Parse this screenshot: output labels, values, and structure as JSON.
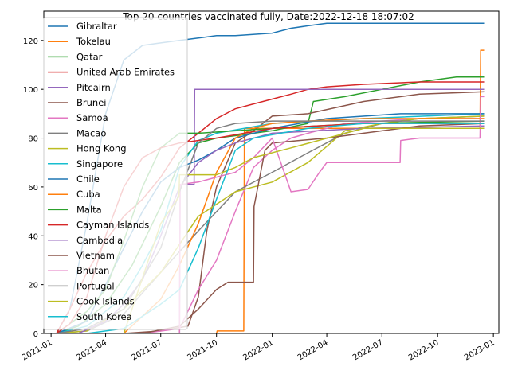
{
  "chart_data": {
    "type": "line",
    "title": "Top 20 countries vaccinated fully, Date:2022-12-18 18:07:02",
    "xlabel": "",
    "ylabel": "",
    "xlim": [
      "2020-12-20",
      "2023-01-10"
    ],
    "ylim": [
      0,
      132
    ],
    "x_ticks": [
      "2021-01",
      "2021-04",
      "2021-07",
      "2021-10",
      "2022-01",
      "2022-04",
      "2022-07",
      "2022-10",
      "2023-01"
    ],
    "y_ticks": [
      0,
      20,
      40,
      60,
      80,
      100,
      120
    ],
    "legend_position": "upper-left",
    "series": [
      {
        "name": "Gibraltar",
        "color": "#1f77b4",
        "x": [
          "2021-01-10",
          "2021-02-01",
          "2021-03-01",
          "2021-04-01",
          "2021-05-01",
          "2021-06-01",
          "2021-07-01",
          "2021-08-01",
          "2021-09-01",
          "2021-10-01",
          "2021-11-01",
          "2022-01-01",
          "2022-02-01",
          "2022-03-01",
          "2022-04-01",
          "2022-05-01",
          "2022-07-01",
          "2022-10-01",
          "2022-12-18"
        ],
        "y": [
          0,
          10,
          45,
          90,
          112,
          118,
          119,
          120,
          121,
          122,
          122,
          123,
          125,
          126,
          127,
          127,
          127,
          127,
          127
        ]
      },
      {
        "name": "Tokelau",
        "color": "#ff7f0e",
        "x": [
          "2021-01-10",
          "2021-07-01",
          "2021-07-05",
          "2021-10-01",
          "2021-10-02",
          "2021-11-15",
          "2021-11-16",
          "2022-12-10",
          "2022-12-11",
          "2022-12-18"
        ],
        "y": [
          0,
          0,
          0,
          0,
          1,
          1,
          84,
          84,
          116,
          116
        ]
      },
      {
        "name": "Qatar",
        "color": "#2ca02c",
        "x": [
          "2021-01-10",
          "2021-02-15",
          "2021-04-01",
          "2021-05-15",
          "2021-07-01",
          "2021-08-01",
          "2021-09-01",
          "2021-10-01",
          "2021-11-01",
          "2022-01-01",
          "2022-03-01",
          "2022-03-10",
          "2022-05-01",
          "2022-07-01",
          "2022-09-01",
          "2022-11-01",
          "2022-12-18"
        ],
        "y": [
          0,
          3,
          12,
          28,
          52,
          70,
          78,
          80,
          81,
          83,
          86,
          95,
          97,
          100,
          103,
          105,
          105
        ]
      },
      {
        "name": "United Arab Emirates",
        "color": "#d62728",
        "x": [
          "2021-01-10",
          "2021-02-01",
          "2021-03-01",
          "2021-04-01",
          "2021-05-01",
          "2021-06-01",
          "2021-07-01",
          "2021-08-01",
          "2021-09-01",
          "2021-10-01",
          "2021-11-01",
          "2021-12-01",
          "2022-01-01",
          "2022-02-01",
          "2022-03-01",
          "2022-04-01",
          "2022-06-01",
          "2022-09-01",
          "2022-12-18"
        ],
        "y": [
          0,
          10,
          25,
          38,
          48,
          55,
          64,
          76,
          82,
          88,
          92,
          94,
          96,
          98,
          100,
          101,
          102,
          103,
          103
        ]
      },
      {
        "name": "Pitcairn",
        "color": "#9467bd",
        "x": [
          "2021-01-10",
          "2021-08-01",
          "2021-08-02",
          "2021-08-25",
          "2021-08-26",
          "2022-12-18"
        ],
        "y": [
          0,
          0,
          61,
          61,
          100,
          100
        ]
      },
      {
        "name": "Brunei",
        "color": "#8c564b",
        "x": [
          "2021-01-10",
          "2021-05-01",
          "2021-07-01",
          "2021-08-15",
          "2021-09-01",
          "2021-09-15",
          "2021-10-01",
          "2021-11-01",
          "2021-12-01",
          "2022-01-01",
          "2022-03-01",
          "2022-06-01",
          "2022-09-01",
          "2022-12-18"
        ],
        "y": [
          0,
          0,
          1,
          3,
          15,
          42,
          60,
          78,
          83,
          89,
          90,
          95,
          98,
          99
        ]
      },
      {
        "name": "Samoa",
        "color": "#e377c2",
        "x": [
          "2021-01-10",
          "2021-06-01",
          "2021-08-01",
          "2021-09-01",
          "2021-10-01",
          "2021-11-01",
          "2021-12-01",
          "2022-01-01",
          "2022-02-01",
          "2022-03-01",
          "2022-04-01",
          "2022-05-01",
          "2022-07-01",
          "2022-09-01",
          "2022-12-18"
        ],
        "y": [
          0,
          0,
          2,
          18,
          30,
          50,
          68,
          75,
          80,
          82,
          84,
          86,
          87,
          88,
          88
        ]
      },
      {
        "name": "Macao",
        "color": "#7f7f7f",
        "x": [
          "2021-01-10",
          "2021-03-01",
          "2021-05-01",
          "2021-07-01",
          "2021-09-01",
          "2021-11-01",
          "2022-01-01",
          "2022-03-01",
          "2022-05-01",
          "2022-07-01",
          "2022-09-01",
          "2022-12-18"
        ],
        "y": [
          0,
          1,
          8,
          25,
          42,
          58,
          66,
          74,
          82,
          86,
          88,
          89
        ]
      },
      {
        "name": "Hong Kong",
        "color": "#bcbd22",
        "x": [
          "2021-01-10",
          "2021-03-01",
          "2021-05-01",
          "2021-07-01",
          "2021-09-01",
          "2021-11-01",
          "2022-01-01",
          "2022-03-01",
          "2022-05-01",
          "2022-07-01",
          "2022-09-01",
          "2022-12-18"
        ],
        "y": [
          0,
          1,
          10,
          25,
          48,
          58,
          62,
          70,
          83,
          86,
          88,
          89
        ]
      },
      {
        "name": "Singapore",
        "color": "#17becf",
        "x": [
          "2021-01-10",
          "2021-03-01",
          "2021-05-01",
          "2021-06-01",
          "2021-07-01",
          "2021-08-01",
          "2021-09-01",
          "2021-10-01",
          "2022-01-01",
          "2022-06-01",
          "2022-12-18"
        ],
        "y": [
          0,
          3,
          15,
          28,
          42,
          68,
          79,
          82,
          86,
          88,
          90
        ]
      },
      {
        "name": "Chile",
        "color": "#1f77b4",
        "x": [
          "2021-01-10",
          "2021-03-01",
          "2021-04-01",
          "2021-05-01",
          "2021-06-01",
          "2021-07-01",
          "2021-08-01",
          "2021-09-01",
          "2021-10-01",
          "2021-11-01",
          "2022-01-01",
          "2022-04-01",
          "2022-08-01",
          "2022-12-18"
        ],
        "y": [
          0,
          5,
          20,
          35,
          50,
          62,
          68,
          71,
          75,
          80,
          84,
          88,
          90,
          90
        ]
      },
      {
        "name": "Cuba",
        "color": "#ff7f0e",
        "x": [
          "2021-01-10",
          "2021-05-01",
          "2021-07-01",
          "2021-08-01",
          "2021-09-01",
          "2021-10-01",
          "2021-11-01",
          "2021-12-01",
          "2022-01-01",
          "2022-03-01",
          "2022-06-01",
          "2022-12-18"
        ],
        "y": [
          0,
          0,
          14,
          28,
          45,
          66,
          80,
          84,
          86,
          87,
          88,
          88
        ]
      },
      {
        "name": "Malta",
        "color": "#2ca02c",
        "x": [
          "2021-01-10",
          "2021-02-01",
          "2021-03-01",
          "2021-04-01",
          "2021-05-01",
          "2021-06-01",
          "2021-07-01",
          "2021-08-01",
          "2021-09-01",
          "2022-01-01",
          "2022-06-01",
          "2022-12-18"
        ],
        "y": [
          0,
          4,
          9,
          18,
          38,
          60,
          76,
          82,
          82,
          84,
          86,
          87
        ]
      },
      {
        "name": "Cayman Islands",
        "color": "#d62728",
        "x": [
          "2021-01-10",
          "2021-02-01",
          "2021-03-01",
          "2021-04-01",
          "2021-05-01",
          "2021-06-01",
          "2021-07-01",
          "2021-08-01",
          "2021-10-01",
          "2022-01-01",
          "2022-06-01",
          "2022-12-18"
        ],
        "y": [
          0,
          4,
          15,
          40,
          60,
          72,
          76,
          78,
          80,
          84,
          86,
          86
        ]
      },
      {
        "name": "Cambodia",
        "color": "#9467bd",
        "x": [
          "2021-01-10",
          "2021-02-15",
          "2021-04-01",
          "2021-05-01",
          "2021-06-01",
          "2021-07-01",
          "2021-08-01",
          "2021-09-01",
          "2021-10-01",
          "2021-11-01",
          "2022-01-01",
          "2022-06-01",
          "2022-12-18"
        ],
        "y": [
          0,
          0,
          5,
          12,
          22,
          40,
          60,
          70,
          75,
          78,
          82,
          84,
          85
        ]
      },
      {
        "name": "Vietnam",
        "color": "#8c564b",
        "x": [
          "2021-01-10",
          "2021-03-01",
          "2021-06-01",
          "2021-08-01",
          "2021-09-01",
          "2021-10-01",
          "2021-10-20",
          "2021-11-01",
          "2021-12-01",
          "2021-12-02",
          "2021-12-20",
          "2022-01-01",
          "2022-04-01",
          "2022-06-01",
          "2022-09-01",
          "2022-12-18"
        ],
        "y": [
          0,
          0,
          0,
          3,
          10,
          18,
          21,
          21,
          21,
          52,
          75,
          78,
          80,
          82,
          85,
          86
        ]
      },
      {
        "name": "Bhutan",
        "color": "#e377c2",
        "x": [
          "2021-01-10",
          "2021-06-01",
          "2021-07-15",
          "2021-08-01",
          "2021-08-02",
          "2021-09-01",
          "2021-10-01",
          "2021-11-01",
          "2021-12-01",
          "2022-01-01",
          "2022-02-01",
          "2022-03-01",
          "2022-03-20",
          "2022-04-01",
          "2022-04-15",
          "2022-05-01",
          "2022-06-01",
          "2022-07-01",
          "2022-07-31",
          "2022-08-01",
          "2022-09-01",
          "2022-10-01",
          "2022-11-01",
          "2022-12-10",
          "2022-12-11",
          "2022-12-18"
        ],
        "y": [
          0,
          0,
          0,
          0,
          61,
          62,
          64,
          66,
          72,
          80,
          58,
          59,
          66,
          70,
          70,
          70,
          70,
          70,
          70,
          79,
          80,
          80,
          80,
          80,
          97,
          97
        ]
      },
      {
        "name": "Portugal",
        "color": "#7f7f7f",
        "x": [
          "2021-01-10",
          "2021-03-01",
          "2021-05-01",
          "2021-07-01",
          "2021-08-01",
          "2021-09-01",
          "2021-10-01",
          "2021-11-01",
          "2022-01-01",
          "2022-05-01",
          "2022-12-18"
        ],
        "y": [
          0,
          2,
          10,
          35,
          58,
          78,
          84,
          86,
          87,
          87,
          87
        ]
      },
      {
        "name": "Cook Islands",
        "color": "#bcbd22",
        "x": [
          "2021-01-10",
          "2021-05-01",
          "2021-07-01",
          "2021-07-31",
          "2021-08-01",
          "2021-09-01",
          "2021-10-01",
          "2021-11-01",
          "2021-12-01",
          "2022-02-01",
          "2022-06-01",
          "2022-12-18"
        ],
        "y": [
          0,
          0,
          45,
          56,
          65,
          65,
          65,
          68,
          72,
          76,
          84,
          84
        ]
      },
      {
        "name": "South Korea",
        "color": "#17becf",
        "x": [
          "2021-01-10",
          "2021-03-01",
          "2021-05-01",
          "2021-07-01",
          "2021-08-01",
          "2021-09-01",
          "2021-10-01",
          "2021-11-01",
          "2021-12-01",
          "2022-03-01",
          "2022-06-01",
          "2022-12-18"
        ],
        "y": [
          0,
          0,
          2,
          12,
          18,
          35,
          55,
          75,
          80,
          84,
          86,
          86
        ]
      }
    ]
  }
}
